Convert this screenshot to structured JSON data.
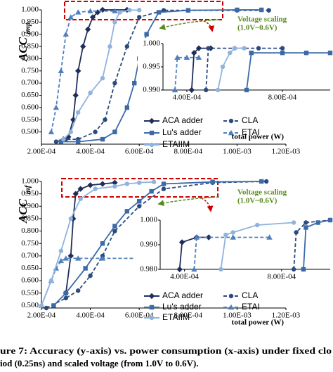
{
  "chart_data": [
    {
      "type": "line",
      "y_label": "ACC",
      "y_label_sub": "imp",
      "x_label": "total power (W)",
      "annotation": [
        "Voltage scaling",
        "(1.0V~0.6V)"
      ],
      "xlim": [
        0.0002,
        0.0012
      ],
      "ylim": [
        0.45,
        1.0
      ],
      "xticks": [
        {
          "value": 0.0002,
          "label": "2.00E-04"
        },
        {
          "value": 0.0004,
          "label": "4.00E-04"
        },
        {
          "value": 0.0006,
          "label": "6.00E-04"
        },
        {
          "value": 0.0008,
          "label": "8.00E-04"
        },
        {
          "value": 0.001,
          "label": "1.00E-03"
        },
        {
          "value": 0.0012,
          "label": "1.20E-03"
        }
      ],
      "yticks": [
        {
          "value": 0.5,
          "label": "0.500"
        },
        {
          "value": 0.55,
          "label": "0.550"
        },
        {
          "value": 0.6,
          "label": "0.600"
        },
        {
          "value": 0.65,
          "label": "0.650"
        },
        {
          "value": 0.7,
          "label": "0.700"
        },
        {
          "value": 0.75,
          "label": "0.750"
        },
        {
          "value": 0.8,
          "label": "0.800"
        },
        {
          "value": 0.85,
          "label": "0.850"
        },
        {
          "value": 0.9,
          "label": "0.900"
        },
        {
          "value": 0.95,
          "label": "0.950"
        },
        {
          "value": 1.0,
          "label": "1.000"
        }
      ],
      "series": [
        {
          "name": "ACA adder",
          "color": "#1f2d5a",
          "marker": "diamond",
          "x": [
            0.00029,
            0.00031,
            0.00033,
            0.00034,
            0.00035,
            0.00037,
            0.00039,
            0.00041,
            0.00043,
            0.00045,
            0.00055
          ],
          "values": [
            0.47,
            0.48,
            0.55,
            0.65,
            0.75,
            0.85,
            0.92,
            0.97,
            0.99,
            1.0,
            1.0
          ]
        },
        {
          "name": "CLA",
          "color": "#2b4a7e",
          "marker": "circle",
          "dash": true,
          "x": [
            0.00026,
            0.0003,
            0.00035,
            0.00042,
            0.00046,
            0.0005,
            0.00055,
            0.0006,
            0.0007,
            0.0008,
            0.001,
            0.00113
          ],
          "values": [
            0.46,
            0.47,
            0.47,
            0.5,
            0.55,
            0.7,
            0.85,
            0.97,
            0.998,
            0.998,
            0.998,
            0.998
          ]
        },
        {
          "name": "Lu's adder",
          "color": "#3a6aa8",
          "marker": "square",
          "x": [
            0.00028,
            0.00035,
            0.00045,
            0.0005,
            0.00055,
            0.00058,
            0.0006,
            0.00063,
            0.00068,
            0.0008,
            0.001,
            0.0011
          ],
          "values": [
            0.46,
            0.46,
            0.47,
            0.5,
            0.6,
            0.7,
            0.8,
            0.9,
            0.99,
            0.998,
            1.0,
            1.0
          ]
        },
        {
          "name": "ETAI",
          "color": "#4f80bd",
          "marker": "triangle",
          "dash": true,
          "x": [
            0.00024,
            0.00026,
            0.00028,
            0.0003,
            0.00032,
            0.00035,
            0.0004,
            0.0005
          ],
          "values": [
            0.5,
            0.6,
            0.75,
            0.9,
            0.97,
            0.99,
            0.995,
            0.995
          ]
        },
        {
          "name": "ETAIIM",
          "color": "#8fb3dd",
          "marker": "circle",
          "x": [
            0.00029,
            0.00032,
            0.00035,
            0.0004,
            0.00045,
            0.00048,
            0.0005,
            0.00052,
            0.00056,
            0.0006
          ],
          "values": [
            0.47,
            0.5,
            0.58,
            0.66,
            0.72,
            0.85,
            0.95,
            0.99,
            0.999,
            0.999
          ]
        }
      ]
    },
    {
      "type": "line",
      "xlim": [
        0.0003,
        0.001
      ],
      "ylim": [
        0.99,
        1.0
      ],
      "xticks": [
        {
          "value": 0.0004,
          "label": "4.00E-04"
        },
        {
          "value": 0.0008,
          "label": "8.00E-04"
        }
      ],
      "yticks": [
        {
          "value": 0.99,
          "label": "0.990"
        },
        {
          "value": 0.995,
          "label": "0.995"
        },
        {
          "value": 1.0,
          "label": "1.000"
        }
      ],
      "series": [
        {
          "color": "#1f2d5a",
          "marker": "diamond",
          "x": [
            0.00042,
            0.00043,
            0.00045,
            0.0005
          ],
          "values": [
            0.99,
            0.998,
            0.999,
            0.999
          ]
        },
        {
          "color": "#2b4a7e",
          "marker": "circle",
          "dash": true,
          "x": [
            0.00048,
            0.00049,
            0.0006,
            0.0007,
            0.0008
          ],
          "values": [
            0.99,
            0.999,
            0.999,
            0.999,
            0.999
          ]
        },
        {
          "color": "#3a6aa8",
          "marker": "square",
          "x": [
            0.00065,
            0.00067,
            0.0008,
            0.0009,
            0.001
          ],
          "values": [
            0.99,
            0.998,
            0.998,
            0.998,
            0.998
          ]
        },
        {
          "color": "#4f80bd",
          "marker": "triangle",
          "dash": true,
          "x": [
            0.00035,
            0.00036,
            0.0004,
            0.00045
          ],
          "values": [
            0.99,
            0.997,
            0.997,
            0.997
          ]
        },
        {
          "color": "#8fb3dd",
          "marker": "circle",
          "x": [
            0.00053,
            0.00055,
            0.00058,
            0.0006,
            0.00064
          ],
          "values": [
            0.99,
            0.995,
            0.998,
            0.999,
            0.999
          ]
        }
      ]
    },
    {
      "type": "line",
      "y_label": "ACC",
      "y_label_sub": "inf",
      "x_label": "total power (W)",
      "annotation": [
        "Voltage scaling",
        "(1.0V~0.6V)"
      ],
      "xlim": [
        0.0002,
        0.0012
      ],
      "ylim": [
        0.49,
        1.0
      ],
      "xticks": [
        {
          "value": 0.0002,
          "label": "2.00E-04"
        },
        {
          "value": 0.0004,
          "label": "4.00E-04"
        },
        {
          "value": 0.0006,
          "label": "6.00E-04"
        },
        {
          "value": 0.0008,
          "label": "8.00E-04"
        },
        {
          "value": 0.001,
          "label": "1.00E-03"
        },
        {
          "value": 0.0012,
          "label": "1.20E-03"
        }
      ],
      "yticks": [
        {
          "value": 0.5,
          "label": "0.500"
        },
        {
          "value": 0.55,
          "label": "0.550"
        },
        {
          "value": 0.6,
          "label": "0.600"
        },
        {
          "value": 0.65,
          "label": "0.650"
        },
        {
          "value": 0.7,
          "label": "0.700"
        },
        {
          "value": 0.75,
          "label": "0.750"
        },
        {
          "value": 0.8,
          "label": "0.800"
        },
        {
          "value": 0.85,
          "label": "0.850"
        },
        {
          "value": 0.9,
          "label": "0.900"
        },
        {
          "value": 0.95,
          "label": "0.950"
        },
        {
          "value": 1.0,
          "label": "1.000"
        }
      ],
      "series": [
        {
          "name": "ACA adder",
          "color": "#1f2d5a",
          "marker": "diamond",
          "x": [
            0.0003,
            0.00032,
            0.00033,
            0.00034,
            0.00036,
            0.0004,
            0.00045,
            0.0005
          ],
          "values": [
            0.55,
            0.7,
            0.85,
            0.95,
            0.97,
            0.985,
            0.99,
            0.995
          ]
        },
        {
          "name": "CLA",
          "color": "#2b4a7e",
          "marker": "circle",
          "dash": true,
          "x": [
            0.00022,
            0.0003,
            0.00035,
            0.0004,
            0.00045,
            0.0005,
            0.0006,
            0.0007,
            0.0009,
            0.00112
          ],
          "values": [
            0.49,
            0.53,
            0.56,
            0.62,
            0.7,
            0.8,
            0.9,
            0.97,
            0.995,
            1.0
          ]
        },
        {
          "name": "Lu's adder",
          "color": "#3a6aa8",
          "marker": "square",
          "x": [
            0.00025,
            0.0003,
            0.00038,
            0.00045,
            0.0005,
            0.00055,
            0.0006,
            0.00065,
            0.0007,
            0.0009,
            0.0011
          ],
          "values": [
            0.5,
            0.55,
            0.65,
            0.75,
            0.82,
            0.88,
            0.92,
            0.96,
            0.99,
            0.998,
            1.0
          ]
        },
        {
          "name": "ETAI",
          "color": "#4f80bd",
          "marker": "triangle",
          "dash": true,
          "x": [
            0.0002,
            0.00024,
            0.00026,
            0.00028,
            0.0003,
            0.00035,
            0.00045,
            0.0006
          ],
          "values": [
            0.5,
            0.6,
            0.65,
            0.68,
            0.69,
            0.69,
            0.69,
            0.69
          ]
        },
        {
          "name": "ETAIIM",
          "color": "#8fb3dd",
          "marker": "circle",
          "x": [
            0.0002,
            0.00024,
            0.00028,
            0.00032,
            0.00036,
            0.00042,
            0.0005,
            0.00055,
            0.0006,
            0.00066
          ],
          "values": [
            0.5,
            0.6,
            0.72,
            0.85,
            0.93,
            0.97,
            0.98,
            0.99,
            0.995,
            0.998
          ]
        }
      ]
    },
    {
      "type": "line",
      "xlim": [
        0.0003,
        0.001
      ],
      "ylim": [
        0.98,
        1.0
      ],
      "xticks": [
        {
          "value": 0.0004,
          "label": "4.00E-04"
        },
        {
          "value": 0.0008,
          "label": "8.00E-04"
        }
      ],
      "yticks": [
        {
          "value": 0.98,
          "label": "0.980"
        },
        {
          "value": 0.99,
          "label": "0.990"
        },
        {
          "value": 1.0,
          "label": "1.000"
        }
      ],
      "series": [
        {
          "color": "#1f2d5a",
          "marker": "diamond",
          "x": [
            0.00038,
            0.00039,
            0.00045,
            0.0005
          ],
          "values": [
            0.98,
            0.991,
            0.993,
            0.993
          ]
        },
        {
          "color": "#2b4a7e",
          "marker": "circle",
          "dash": true,
          "x": [
            0.00085,
            0.00086,
            0.0009,
            0.001
          ],
          "values": [
            0.98,
            0.995,
            0.999,
            1.0
          ]
        },
        {
          "color": "#3a6aa8",
          "marker": "square",
          "x": [
            0.00089,
            0.0009,
            0.00095,
            0.001
          ],
          "values": [
            0.98,
            0.997,
            0.999,
            1.0
          ]
        },
        {
          "color": "#4f80bd",
          "marker": "triangle",
          "dash": true,
          "x": [
            0.00044,
            0.00045,
            0.0006,
            0.00075
          ],
          "values": [
            0.98,
            0.993,
            0.993,
            0.993
          ]
        },
        {
          "color": "#8fb3dd",
          "marker": "circle",
          "x": [
            0.00055,
            0.00057,
            0.0006,
            0.0007,
            0.00085
          ],
          "values": [
            0.98,
            0.994,
            0.995,
            0.998,
            0.999
          ]
        }
      ]
    }
  ],
  "caption": [
    "ure 7: Accuracy (y-axis) vs. power consumption (x-axis) under fixed clo",
    "iod (0.25ns) and scaled voltage (from 1.0V to 0.6V)."
  ]
}
